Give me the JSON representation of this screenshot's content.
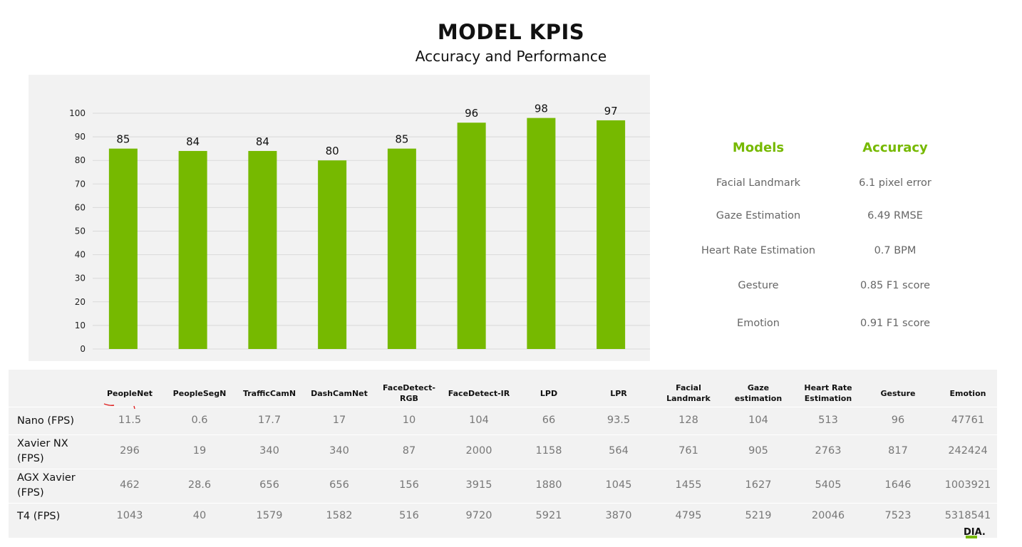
{
  "header": {
    "title": "MODEL KPIS",
    "subtitle": "Accuracy and Performance"
  },
  "chart_data": {
    "type": "bar",
    "categories": [
      "PeopleNet",
      "PeopleSegN",
      "TrafficCamN",
      "DashCamNet",
      "FaceDetect-RGB",
      "FaceDetect-IR",
      "LPD",
      "LPR"
    ],
    "values": [
      85,
      84,
      84,
      80,
      85,
      96,
      98,
      97
    ],
    "ylim": [
      0,
      100
    ],
    "yticks": [
      0,
      10,
      20,
      30,
      40,
      50,
      60,
      70,
      80,
      90,
      100
    ],
    "grid": true,
    "bar_color": "#76b900",
    "title": "",
    "xlabel": "",
    "ylabel": ""
  },
  "accuracy": {
    "headers": [
      "Models",
      "Accuracy"
    ],
    "rows": [
      [
        "Facial Landmark",
        "6.1 pixel error"
      ],
      [
        "Gaze Estimation",
        "6.49 RMSE"
      ],
      [
        "Heart Rate Estimation",
        "0.7 BPM"
      ],
      [
        "Gesture",
        "0.85 F1 score"
      ],
      [
        "Emotion",
        "0.91 F1 score"
      ]
    ],
    "accent_color": "#76b900"
  },
  "performance": {
    "columns": [
      "PeopleNet",
      "PeopleSegN",
      "TrafficCamN",
      "DashCamNet",
      "FaceDetect-\nRGB",
      "FaceDetect-IR",
      "LPD",
      "LPR",
      "Facial\nLandmark",
      "Gaze\nestimation",
      "Heart Rate\nEstimation",
      "Gesture",
      "Emotion"
    ],
    "rows": [
      {
        "label": "Nano (FPS)",
        "values": [
          "11.5",
          "0.6",
          "17.7",
          "17",
          "10",
          "104",
          "66",
          "93.5",
          "128",
          "104",
          "513",
          "96",
          "47761"
        ]
      },
      {
        "label": "Xavier NX\n(FPS)",
        "values": [
          "296",
          "19",
          "340",
          "340",
          "87",
          "2000",
          "1158",
          "564",
          "761",
          "905",
          "2763",
          "817",
          "242424"
        ]
      },
      {
        "label": "AGX Xavier\n(FPS)",
        "values": [
          "462",
          "28.6",
          "656",
          "656",
          "156",
          "3915",
          "1880",
          "1045",
          "1455",
          "1627",
          "5405",
          "1646",
          "1003921"
        ]
      },
      {
        "label": "T4 (FPS)",
        "values": [
          "1043",
          "40",
          "1579",
          "1582",
          "516",
          "9720",
          "5921",
          "3870",
          "4795",
          "5219",
          "20046",
          "7523",
          "5318541"
        ]
      }
    ]
  },
  "logo_text": "DIA."
}
